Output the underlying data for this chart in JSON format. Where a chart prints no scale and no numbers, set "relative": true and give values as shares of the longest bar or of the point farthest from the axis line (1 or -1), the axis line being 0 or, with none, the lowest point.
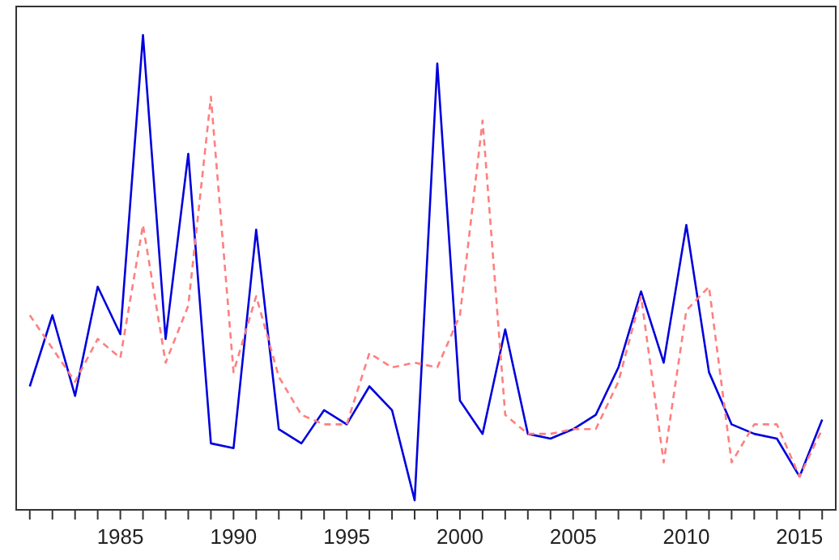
{
  "chart_data": {
    "type": "line",
    "relative": true,
    "xlim": [
      1980.4,
      2016.6
    ],
    "xticks": [
      {
        "value": 1981,
        "label": null
      },
      {
        "value": 1982,
        "label": null
      },
      {
        "value": 1983,
        "label": null
      },
      {
        "value": 1984,
        "label": null
      },
      1985,
      {
        "value": 1986,
        "label": null
      },
      {
        "value": 1987,
        "label": null
      },
      {
        "value": 1988,
        "label": null
      },
      {
        "value": 1989,
        "label": null
      },
      1990,
      {
        "value": 1991,
        "label": null
      },
      {
        "value": 1992,
        "label": null
      },
      {
        "value": 1993,
        "label": null
      },
      {
        "value": 1994,
        "label": null
      },
      1995,
      {
        "value": 1996,
        "label": null
      },
      {
        "value": 1997,
        "label": null
      },
      {
        "value": 1998,
        "label": null
      },
      {
        "value": 1999,
        "label": null
      },
      2000,
      {
        "value": 2001,
        "label": null
      },
      {
        "value": 2002,
        "label": null
      },
      {
        "value": 2003,
        "label": null
      },
      {
        "value": 2004,
        "label": null
      },
      2005,
      {
        "value": 2006,
        "label": null
      },
      {
        "value": 2007,
        "label": null
      },
      {
        "value": 2008,
        "label": null
      },
      {
        "value": 2009,
        "label": null
      },
      2010,
      {
        "value": 2011,
        "label": null
      },
      {
        "value": 2012,
        "label": null
      },
      {
        "value": 2013,
        "label": null
      },
      {
        "value": 2014,
        "label": null
      },
      2015,
      {
        "value": 2016,
        "label": null
      }
    ],
    "x": [
      1981,
      1982,
      1983,
      1984,
      1985,
      1986,
      1987,
      1988,
      1989,
      1990,
      1991,
      1992,
      1993,
      1994,
      1995,
      1996,
      1997,
      1998,
      1999,
      2000,
      2001,
      2002,
      2003,
      2004,
      2005,
      2006,
      2007,
      2008,
      2009,
      2010,
      2011,
      2012,
      2013,
      2014,
      2015,
      2016
    ],
    "marker": "none",
    "series": [
      {
        "color": "#0000dd",
        "line_style": "solid",
        "values": [
          0.26,
          0.41,
          0.24,
          0.47,
          0.37,
          1,
          0.36,
          0.75,
          0.14,
          0.13,
          0.59,
          0.17,
          0.14,
          0.21,
          0.18,
          0.26,
          0.21,
          0.02,
          0.94,
          0.23,
          0.16,
          0.38,
          0.16,
          0.15,
          0.17,
          0.2,
          0.3,
          0.46,
          0.31,
          0.6,
          0.29,
          0.18,
          0.16,
          0.15,
          0.07,
          0.19
        ]
      },
      {
        "color": "#ff7f7f",
        "line_style": "dashed",
        "values": [
          0.41,
          0.34,
          0.27,
          0.36,
          0.32,
          0.6,
          0.31,
          0.43,
          0.87,
          0.29,
          0.45,
          0.28,
          0.2,
          0.18,
          0.18,
          0.33,
          0.3,
          0.31,
          0.3,
          0.41,
          0.82,
          0.2,
          0.16,
          0.16,
          0.17,
          0.17,
          0.27,
          0.45,
          0.1,
          0.42,
          0.47,
          0.1,
          0.18,
          0.18,
          0.07,
          0.17
        ]
      }
    ]
  }
}
